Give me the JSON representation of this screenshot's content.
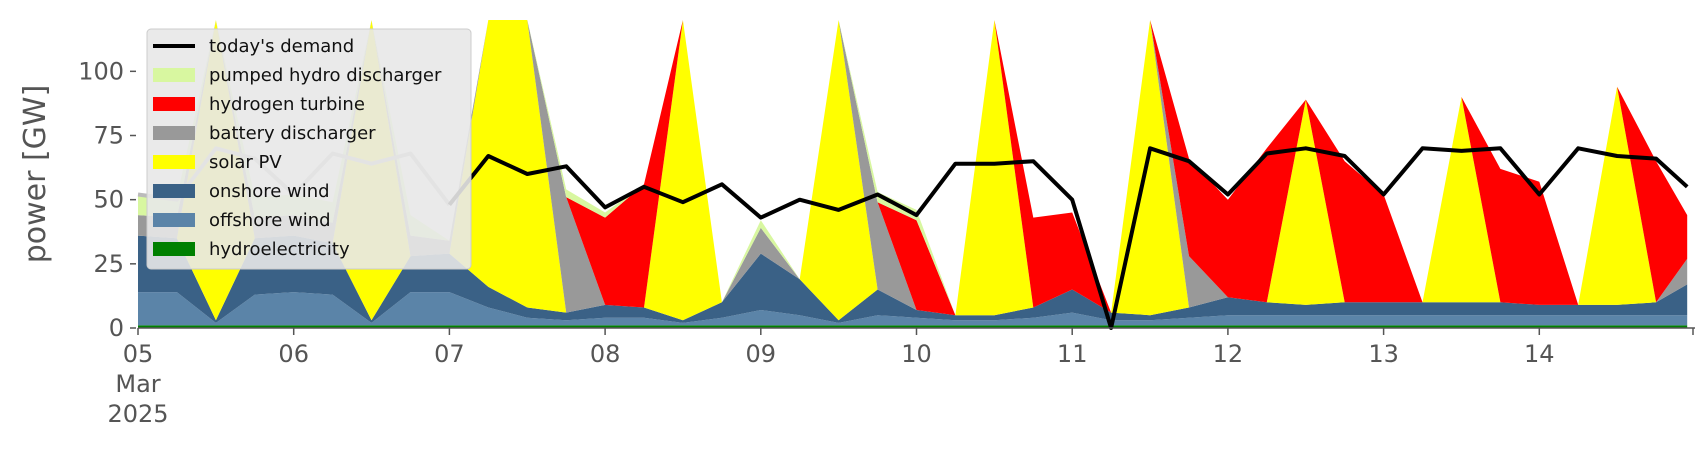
{
  "chart_data": {
    "type": "area",
    "title": "",
    "xlabel": "",
    "ylabel": "power [GW]",
    "ylim": [
      0,
      120
    ],
    "yticks": [
      0,
      25,
      50,
      75,
      100
    ],
    "x_start": "2025-03-05",
    "x_end": "2025-03-14",
    "x_tick_labels": [
      {
        "label": "05",
        "sub": [
          "Mar",
          "2025"
        ]
      },
      {
        "label": "06"
      },
      {
        "label": "07"
      },
      {
        "label": "08"
      },
      {
        "label": "09"
      },
      {
        "label": "10"
      },
      {
        "label": "11"
      },
      {
        "label": "12"
      },
      {
        "label": "13"
      },
      {
        "label": "14"
      }
    ],
    "legend_position": "upper-left",
    "grid": false,
    "x": [
      5.0,
      5.25,
      5.5,
      5.75,
      6.0,
      6.25,
      6.5,
      6.75,
      7.0,
      7.25,
      7.5,
      7.75,
      8.0,
      8.25,
      8.5,
      8.75,
      9.0,
      9.25,
      9.5,
      9.75,
      10.0,
      10.25,
      10.5,
      10.75,
      11.0,
      11.25,
      11.5,
      11.75,
      12.0,
      12.25,
      12.5,
      12.75,
      13.0,
      13.25,
      13.5,
      13.75,
      14.0,
      14.25,
      14.5,
      14.75,
      14.95
    ],
    "series": [
      {
        "name": "hydroelectricity",
        "color": "#008000",
        "values": [
          1,
          1,
          1,
          1,
          1,
          1,
          1,
          1,
          1,
          1,
          1,
          1,
          1,
          1,
          1,
          1,
          1,
          1,
          1,
          1,
          1,
          1,
          1,
          1,
          1,
          1,
          1,
          1,
          1,
          1,
          1,
          1,
          1,
          1,
          1,
          1,
          1,
          1,
          1,
          1,
          1
        ]
      },
      {
        "name": "offshore wind",
        "color": "#5b84a8",
        "values": [
          13,
          13,
          1,
          12,
          13,
          12,
          1,
          13,
          13,
          7,
          3,
          2,
          3,
          3,
          1,
          3,
          6,
          4,
          1,
          4,
          3,
          2,
          2,
          3,
          5,
          2,
          2,
          3,
          4,
          4,
          4,
          4,
          4,
          4,
          4,
          4,
          4,
          4,
          4,
          4,
          4
        ]
      },
      {
        "name": "onshore wind",
        "color": "#3a6186",
        "values": [
          22,
          21,
          1,
          22,
          22,
          20,
          1,
          14,
          15,
          8,
          4,
          3,
          5,
          4,
          1,
          6,
          22,
          14,
          1,
          10,
          3,
          2,
          2,
          4,
          9,
          3,
          2,
          4,
          7,
          5,
          4,
          5,
          5,
          5,
          5,
          5,
          4,
          4,
          4,
          5,
          12
        ]
      },
      {
        "name": "solar PV",
        "color": "#ffff00",
        "values": [
          0,
          0,
          120,
          0,
          0,
          0,
          120,
          0,
          0,
          120,
          120,
          0,
          0,
          0,
          120,
          0,
          0,
          0,
          120,
          0,
          0,
          0,
          120,
          0,
          0,
          0,
          120,
          0,
          0,
          0,
          80,
          0,
          0,
          0,
          80,
          0,
          0,
          0,
          85,
          0,
          0
        ]
      },
      {
        "name": "battery discharger",
        "color": "#999999",
        "values": [
          8,
          8,
          0,
          8,
          8,
          8,
          0,
          8,
          5,
          0,
          0,
          45,
          0,
          0,
          0,
          0,
          10,
          0,
          0,
          34,
          0,
          0,
          0,
          0,
          0,
          0,
          0,
          20,
          0,
          0,
          0,
          0,
          0,
          0,
          0,
          0,
          0,
          0,
          0,
          0,
          10
        ]
      },
      {
        "name": "hydrogen turbine",
        "color": "#ff0000",
        "values": [
          0,
          0,
          0,
          0,
          0,
          0,
          0,
          0,
          0,
          0,
          0,
          0,
          34,
          48,
          0,
          0,
          0,
          0,
          0,
          0,
          35,
          0,
          0,
          35,
          30,
          0,
          0,
          38,
          38,
          60,
          0,
          55,
          42,
          0,
          0,
          52,
          48,
          0,
          0,
          55,
          17
        ]
      },
      {
        "name": "pumped hydro discharger",
        "color": "#d8f7a0",
        "values": [
          8,
          8,
          0,
          8,
          8,
          8,
          0,
          8,
          0,
          0,
          0,
          3,
          2,
          0,
          0,
          0,
          3,
          0,
          0,
          4,
          4,
          0,
          0,
          0,
          0,
          0,
          0,
          0,
          0,
          0,
          0,
          0,
          0,
          0,
          0,
          0,
          0,
          0,
          0,
          0,
          0
        ]
      }
    ],
    "demand": {
      "name": "today's demand",
      "color": "#000000",
      "values": [
        52,
        50,
        70,
        66,
        52,
        68,
        64,
        68,
        48,
        67,
        60,
        63,
        47,
        55,
        49,
        56,
        43,
        50,
        46,
        52,
        44,
        64,
        64,
        65,
        50,
        0,
        70,
        65,
        52,
        68,
        70,
        67,
        52,
        70,
        69,
        70,
        52,
        70,
        67,
        66,
        55
      ],
      "gray_until": 7.0,
      "gray_color": "#bbbbbb",
      "dip_at": 11.2
    }
  }
}
